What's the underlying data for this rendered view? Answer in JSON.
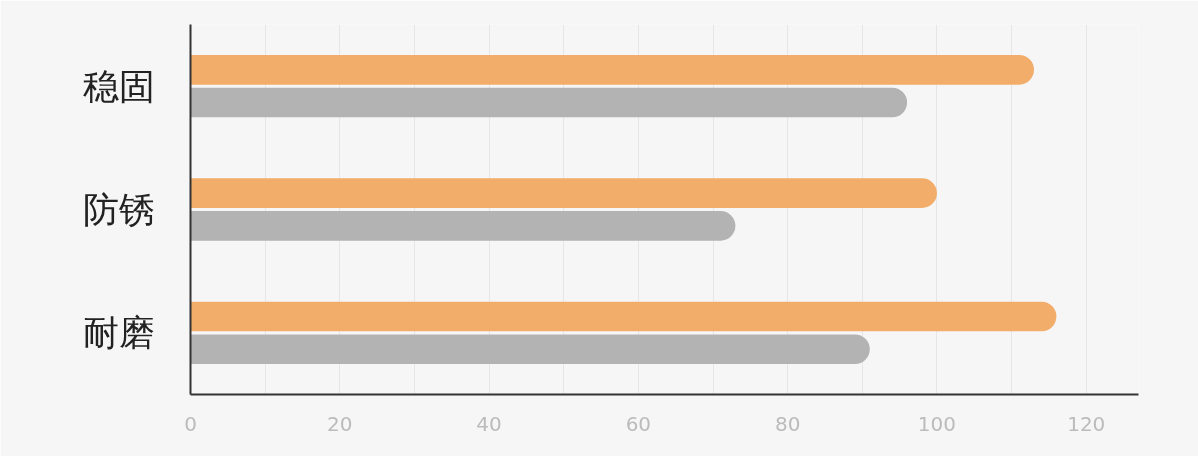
{
  "chart_data": {
    "type": "bar",
    "orientation": "horizontal",
    "categories": [
      "稳固",
      "防锈",
      "耐磨"
    ],
    "series": [
      {
        "color": "#f2ad6b",
        "values": [
          113,
          100,
          116
        ]
      },
      {
        "color": "#b3b3b3",
        "values": [
          96,
          73,
          91
        ]
      }
    ],
    "xlim": [
      0,
      127
    ],
    "xticks": [
      0,
      {
        "value": 10,
        "label": null
      },
      20,
      {
        "value": 30,
        "label": null
      },
      40,
      {
        "value": 50,
        "label": null
      },
      60,
      {
        "value": 70,
        "label": null
      },
      80,
      {
        "value": 90,
        "label": null
      },
      100,
      {
        "value": 110,
        "label": null
      },
      120
    ],
    "grid": "x"
  }
}
